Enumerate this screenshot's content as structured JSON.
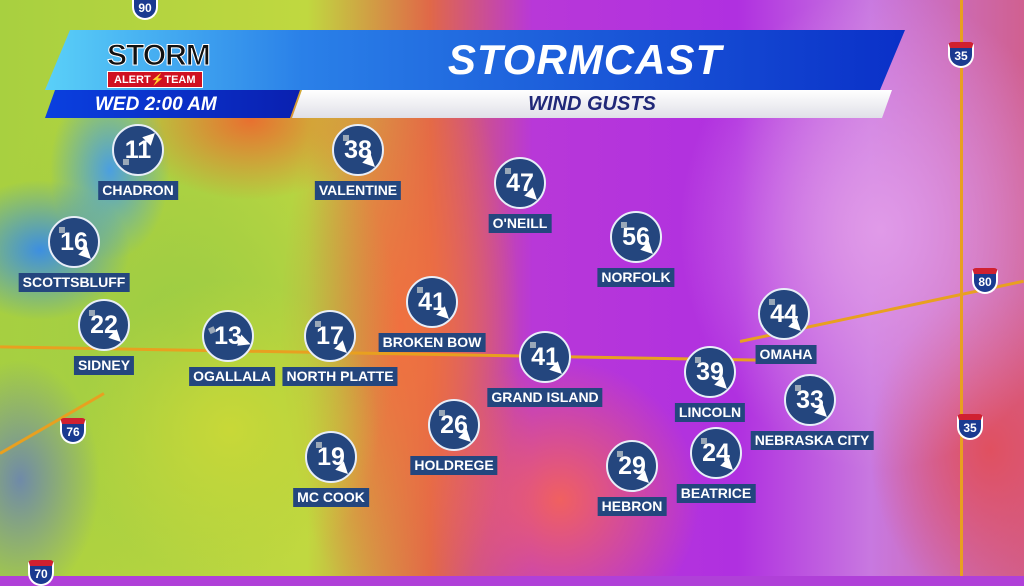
{
  "header": {
    "title": "STORMCAST",
    "subtitle": "WIND GUSTS",
    "time": "WED  2:00 AM",
    "logo": {
      "line1": "STORM",
      "line2": "ALERT⚡TEAM"
    }
  },
  "interstates": [
    "90",
    "35",
    "80",
    "35",
    "76",
    "70"
  ],
  "colors": {
    "circle": "#24467e",
    "banner_blue": "#0a30c8",
    "roads": "#e8a020"
  },
  "stations": [
    {
      "name": "CHADRON",
      "gust": "11",
      "wind_to_deg": -45
    },
    {
      "name": "VALENTINE",
      "gust": "38",
      "wind_to_deg": 45
    },
    {
      "name": "O'NEILL",
      "gust": "47",
      "wind_to_deg": 45
    },
    {
      "name": "NORFOLK",
      "gust": "56",
      "wind_to_deg": 45
    },
    {
      "name": "SCOTTSBLUFF",
      "gust": "16",
      "wind_to_deg": 45
    },
    {
      "name": "SIDNEY",
      "gust": "22",
      "wind_to_deg": 45
    },
    {
      "name": "OGALLALA",
      "gust": "13",
      "wind_to_deg": 20
    },
    {
      "name": "NORTH PLATTE",
      "gust": "17",
      "wind_to_deg": 45
    },
    {
      "name": "BROKEN BOW",
      "gust": "41",
      "wind_to_deg": 45
    },
    {
      "name": "GRAND ISLAND",
      "gust": "41",
      "wind_to_deg": 45
    },
    {
      "name": "OMAHA",
      "gust": "44",
      "wind_to_deg": 45
    },
    {
      "name": "LINCOLN",
      "gust": "39",
      "wind_to_deg": 45
    },
    {
      "name": "NEBRASKA CITY",
      "gust": "33",
      "wind_to_deg": 45
    },
    {
      "name": "HOLDREGE",
      "gust": "26",
      "wind_to_deg": 45
    },
    {
      "name": "MC COOK",
      "gust": "19",
      "wind_to_deg": 45
    },
    {
      "name": "HEBRON",
      "gust": "29",
      "wind_to_deg": 45
    },
    {
      "name": "BEATRICE",
      "gust": "24",
      "wind_to_deg": 45
    }
  ]
}
